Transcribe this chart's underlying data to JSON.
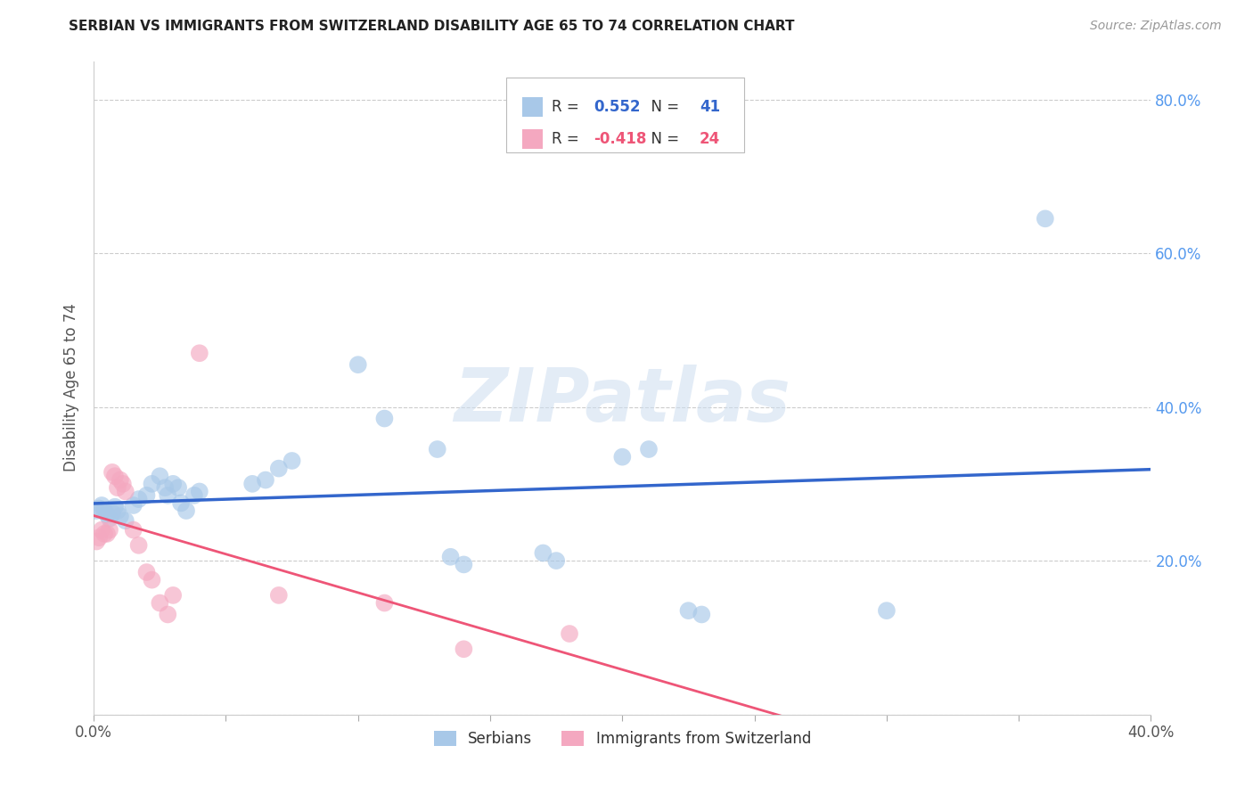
{
  "title": "SERBIAN VS IMMIGRANTS FROM SWITZERLAND DISABILITY AGE 65 TO 74 CORRELATION CHART",
  "source": "Source: ZipAtlas.com",
  "ylabel": "Disability Age 65 to 74",
  "xlim": [
    0.0,
    0.4
  ],
  "ylim": [
    0.0,
    0.85
  ],
  "x_ticks": [
    0.0,
    0.05,
    0.1,
    0.15,
    0.2,
    0.25,
    0.3,
    0.35,
    0.4
  ],
  "y_ticks": [
    0.0,
    0.2,
    0.4,
    0.6,
    0.8
  ],
  "y_tick_labels": [
    "",
    "20.0%",
    "40.0%",
    "60.0%",
    "80.0%"
  ],
  "serbian_R": 0.552,
  "serbian_N": 41,
  "swiss_R": -0.418,
  "swiss_N": 24,
  "legend_label1": "Serbians",
  "legend_label2": "Immigrants from Switzerland",
  "watermark": "ZIPatlas",
  "serbian_color": "#a8c8e8",
  "swiss_color": "#f4a8c0",
  "serbian_line_color": "#3366cc",
  "swiss_line_color": "#ee5577",
  "serbian_points": [
    [
      0.001,
      0.265
    ],
    [
      0.002,
      0.268
    ],
    [
      0.003,
      0.272
    ],
    [
      0.004,
      0.265
    ],
    [
      0.005,
      0.26
    ],
    [
      0.006,
      0.255
    ],
    [
      0.007,
      0.262
    ],
    [
      0.008,
      0.27
    ],
    [
      0.009,
      0.265
    ],
    [
      0.01,
      0.258
    ],
    [
      0.012,
      0.252
    ],
    [
      0.015,
      0.272
    ],
    [
      0.017,
      0.28
    ],
    [
      0.02,
      0.285
    ],
    [
      0.022,
      0.3
    ],
    [
      0.025,
      0.31
    ],
    [
      0.027,
      0.295
    ],
    [
      0.028,
      0.285
    ],
    [
      0.03,
      0.3
    ],
    [
      0.032,
      0.295
    ],
    [
      0.033,
      0.275
    ],
    [
      0.035,
      0.265
    ],
    [
      0.038,
      0.285
    ],
    [
      0.04,
      0.29
    ],
    [
      0.06,
      0.3
    ],
    [
      0.065,
      0.305
    ],
    [
      0.07,
      0.32
    ],
    [
      0.075,
      0.33
    ],
    [
      0.1,
      0.455
    ],
    [
      0.11,
      0.385
    ],
    [
      0.13,
      0.345
    ],
    [
      0.135,
      0.205
    ],
    [
      0.14,
      0.195
    ],
    [
      0.17,
      0.21
    ],
    [
      0.175,
      0.2
    ],
    [
      0.2,
      0.335
    ],
    [
      0.21,
      0.345
    ],
    [
      0.225,
      0.135
    ],
    [
      0.23,
      0.13
    ],
    [
      0.3,
      0.135
    ],
    [
      0.36,
      0.645
    ]
  ],
  "swiss_points": [
    [
      0.001,
      0.225
    ],
    [
      0.002,
      0.23
    ],
    [
      0.003,
      0.24
    ],
    [
      0.004,
      0.235
    ],
    [
      0.005,
      0.235
    ],
    [
      0.006,
      0.24
    ],
    [
      0.007,
      0.315
    ],
    [
      0.008,
      0.31
    ],
    [
      0.009,
      0.295
    ],
    [
      0.01,
      0.305
    ],
    [
      0.011,
      0.3
    ],
    [
      0.012,
      0.29
    ],
    [
      0.015,
      0.24
    ],
    [
      0.017,
      0.22
    ],
    [
      0.02,
      0.185
    ],
    [
      0.022,
      0.175
    ],
    [
      0.025,
      0.145
    ],
    [
      0.028,
      0.13
    ],
    [
      0.03,
      0.155
    ],
    [
      0.04,
      0.47
    ],
    [
      0.07,
      0.155
    ],
    [
      0.11,
      0.145
    ],
    [
      0.14,
      0.085
    ],
    [
      0.18,
      0.105
    ]
  ]
}
